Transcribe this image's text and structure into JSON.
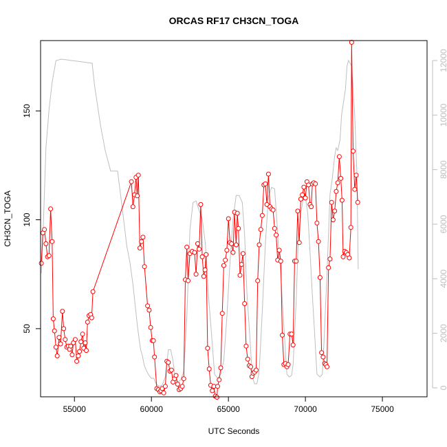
{
  "chart_data": {
    "type": "line",
    "title": "ORCAS RF17 CH3CN_TOGA",
    "xlabel": "UTC Seconds",
    "ylabel": "CH3CN_TOGA",
    "xlim": [
      52800,
      77900
    ],
    "ylim": [
      18.7,
      182.3
    ],
    "y2lim": [
      0,
      12000
    ],
    "x_ticks": [
      55000,
      60000,
      65000,
      70000,
      75000
    ],
    "x_tick_labels": [
      "55000",
      "60000",
      "65000",
      "70000",
      "75000"
    ],
    "y_ticks": [
      50,
      100,
      150
    ],
    "y_tick_labels": [
      "50",
      "100",
      "150"
    ],
    "y2_ticks": [
      0,
      2000,
      4000,
      6000,
      8000,
      10000,
      12000
    ],
    "y2_tick_labels": [
      "0",
      "2000",
      "4000",
      "6000",
      "8000",
      "10000",
      "12000"
    ],
    "series": [
      {
        "role": "CH3CN_TOGA (points with connecting line)",
        "axis": "left",
        "color": "#ff0000",
        "marker": "open-circle",
        "points": [
          [
            52850,
            80
          ],
          [
            52950,
            94
          ],
          [
            53050,
            95.5
          ],
          [
            53150,
            89
          ],
          [
            53250,
            83
          ],
          [
            53350,
            83.5
          ],
          [
            53450,
            105
          ],
          [
            53550,
            90
          ],
          [
            53620,
            54.5
          ],
          [
            53700,
            49
          ],
          [
            53800,
            41.5
          ],
          [
            53880,
            37.5
          ],
          [
            54000,
            46
          ],
          [
            54100,
            43
          ],
          [
            54220,
            58
          ],
          [
            54300,
            50
          ],
          [
            54400,
            45
          ],
          [
            54500,
            41.5
          ],
          [
            54600,
            42
          ],
          [
            54680,
            40.5
          ],
          [
            54750,
            42
          ],
          [
            54850,
            38
          ],
          [
            54930,
            43.5
          ],
          [
            55050,
            45
          ],
          [
            55150,
            35
          ],
          [
            55250,
            37.5
          ],
          [
            55330,
            39.5
          ],
          [
            55420,
            44
          ],
          [
            55530,
            47.5
          ],
          [
            55600,
            41
          ],
          [
            55700,
            43.5
          ],
          [
            55770,
            40
          ],
          [
            55850,
            53
          ],
          [
            55950,
            56
          ],
          [
            56050,
            56.5
          ],
          [
            56120,
            55
          ],
          [
            56200,
            67
          ],
          [
            58700,
            117.5
          ],
          [
            58800,
            106
          ],
          [
            58900,
            111.5
          ],
          [
            59000,
            119.5
          ],
          [
            59080,
            111
          ],
          [
            59150,
            120.5
          ],
          [
            59250,
            87
          ],
          [
            59350,
            90
          ],
          [
            59450,
            92
          ],
          [
            59550,
            78.5
          ],
          [
            59750,
            60.5
          ],
          [
            59850,
            58.5
          ],
          [
            59950,
            50.5
          ],
          [
            60050,
            44.5
          ],
          [
            60130,
            44.5
          ],
          [
            60200,
            37
          ],
          [
            60350,
            22.5
          ],
          [
            60450,
            22
          ],
          [
            60550,
            21
          ],
          [
            60620,
            21.5
          ],
          [
            60700,
            22.5
          ],
          [
            60800,
            20.5
          ],
          [
            60900,
            23.5
          ],
          [
            61000,
            35
          ],
          [
            61100,
            34.5
          ],
          [
            61200,
            30.5
          ],
          [
            61300,
            31
          ],
          [
            61400,
            25.5
          ],
          [
            61500,
            27
          ],
          [
            61600,
            28.5
          ],
          [
            61700,
            24.5
          ],
          [
            61800,
            22
          ],
          [
            61900,
            22.5
          ],
          [
            62000,
            23.5
          ],
          [
            62100,
            27
          ],
          [
            62200,
            72.5
          ],
          [
            62300,
            87.5
          ],
          [
            62380,
            72
          ],
          [
            62500,
            84.5
          ],
          [
            62650,
            85.5
          ],
          [
            62800,
            85
          ],
          [
            62900,
            75
          ],
          [
            63000,
            89
          ],
          [
            63100,
            86.5
          ],
          [
            63200,
            107
          ],
          [
            63300,
            83
          ],
          [
            63400,
            74
          ],
          [
            63480,
            77
          ],
          [
            63550,
            84
          ],
          [
            63650,
            41
          ],
          [
            63750,
            31.5
          ],
          [
            63850,
            24
          ],
          [
            63950,
            21.5
          ],
          [
            64050,
            23.5
          ],
          [
            64150,
            19
          ],
          [
            64250,
            18.5
          ],
          [
            64300,
            23.5
          ],
          [
            64400,
            26.5
          ],
          [
            64500,
            32
          ],
          [
            64600,
            57
          ],
          [
            64700,
            79
          ],
          [
            64800,
            81.5
          ],
          [
            64900,
            86
          ],
          [
            65000,
            100.5
          ],
          [
            65100,
            89.5
          ],
          [
            65200,
            89
          ],
          [
            65300,
            85
          ],
          [
            65400,
            103.5
          ],
          [
            65500,
            88.5
          ],
          [
            65580,
            103
          ],
          [
            65650,
            96
          ],
          [
            65750,
            74.5
          ],
          [
            65850,
            79.5
          ],
          [
            65950,
            84.5
          ],
          [
            66050,
            61.5
          ],
          [
            66150,
            42
          ],
          [
            66250,
            36
          ],
          [
            66350,
            33
          ],
          [
            66450,
            32.5
          ],
          [
            66530,
            28
          ],
          [
            66600,
            29.5
          ],
          [
            66700,
            30
          ],
          [
            66800,
            31
          ],
          [
            66900,
            72
          ],
          [
            67000,
            88.5
          ],
          [
            67100,
            95.5
          ],
          [
            67200,
            102
          ],
          [
            67300,
            116
          ],
          [
            67400,
            116.5
          ],
          [
            67500,
            107
          ],
          [
            67600,
            121
          ],
          [
            67700,
            106
          ],
          [
            67800,
            105
          ],
          [
            67900,
            104.5
          ],
          [
            68000,
            96
          ],
          [
            68100,
            93
          ],
          [
            68200,
            81.5
          ],
          [
            68300,
            86
          ],
          [
            68400,
            81
          ],
          [
            68500,
            47
          ],
          [
            68600,
            33.5
          ],
          [
            68700,
            34
          ],
          [
            68800,
            32.5
          ],
          [
            68880,
            33.5
          ],
          [
            69000,
            47.5
          ],
          [
            69100,
            47.5
          ],
          [
            69200,
            42.5
          ],
          [
            69300,
            81
          ],
          [
            69400,
            81
          ],
          [
            69500,
            104
          ],
          [
            69600,
            89.5
          ],
          [
            69700,
            109.5
          ],
          [
            69800,
            111.5
          ],
          [
            69900,
            115
          ],
          [
            70000,
            110
          ],
          [
            70100,
            117.5
          ],
          [
            70200,
            116
          ],
          [
            70300,
            107
          ],
          [
            70380,
            106
          ],
          [
            70450,
            116.5
          ],
          [
            70550,
            117
          ],
          [
            70650,
            116.5
          ],
          [
            70750,
            98.5
          ],
          [
            70850,
            90
          ],
          [
            70950,
            73.5
          ],
          [
            71050,
            39
          ],
          [
            71150,
            37
          ],
          [
            71250,
            34
          ],
          [
            71330,
            33.5
          ],
          [
            71400,
            32.5
          ],
          [
            71500,
            78
          ],
          [
            71600,
            82
          ],
          [
            71700,
            108
          ],
          [
            71800,
            100
          ],
          [
            71900,
            104
          ],
          [
            72000,
            113
          ],
          [
            72100,
            117
          ],
          [
            72200,
            129
          ],
          [
            72300,
            119
          ],
          [
            72380,
            109
          ],
          [
            72450,
            83
          ],
          [
            72550,
            85.5
          ],
          [
            72650,
            85
          ],
          [
            72750,
            84
          ],
          [
            72850,
            82.5
          ],
          [
            72950,
            96.5
          ],
          [
            73000,
            181.5
          ],
          [
            73100,
            131.5
          ],
          [
            73200,
            114
          ],
          [
            73300,
            120.5
          ],
          [
            73400,
            108
          ]
        ]
      },
      {
        "role": "secondary trace (right axis)",
        "axis": "right",
        "color": "#bebebe",
        "points": [
          [
            52850,
            4200
          ],
          [
            52950,
            5500
          ],
          [
            53150,
            8800
          ],
          [
            53350,
            10200
          ],
          [
            53550,
            11200
          ],
          [
            53800,
            12000
          ],
          [
            54150,
            12050
          ],
          [
            55500,
            11950
          ],
          [
            56150,
            11900
          ],
          [
            56300,
            11100
          ],
          [
            56700,
            9600
          ],
          [
            57000,
            8700
          ],
          [
            57350,
            7950
          ],
          [
            57800,
            7950
          ],
          [
            58100,
            6600
          ],
          [
            58400,
            5200
          ],
          [
            58600,
            4600
          ],
          [
            58800,
            3800
          ],
          [
            59100,
            2200
          ],
          [
            59300,
            1400
          ],
          [
            59400,
            1200
          ],
          [
            59550,
            800
          ],
          [
            59700,
            600
          ],
          [
            59850,
            450
          ],
          [
            60000,
            350
          ],
          [
            60150,
            350
          ],
          [
            60300,
            150
          ],
          [
            60500,
            50
          ],
          [
            60700,
            100
          ],
          [
            60900,
            400
          ],
          [
            61100,
            1400
          ],
          [
            61250,
            1400
          ],
          [
            61400,
            1000
          ],
          [
            61550,
            350
          ],
          [
            61700,
            200
          ],
          [
            61900,
            300
          ],
          [
            62100,
            600
          ],
          [
            62300,
            2600
          ],
          [
            62500,
            5800
          ],
          [
            62700,
            6800
          ],
          [
            62900,
            6850
          ],
          [
            63100,
            6500
          ],
          [
            63300,
            6200
          ],
          [
            63500,
            5300
          ],
          [
            63700,
            3400
          ],
          [
            63900,
            2000
          ],
          [
            64100,
            500
          ],
          [
            64300,
            350
          ],
          [
            64500,
            500
          ],
          [
            64700,
            1000
          ],
          [
            64900,
            2600
          ],
          [
            65100,
            4600
          ],
          [
            65300,
            6200
          ],
          [
            65500,
            7050
          ],
          [
            65700,
            7050
          ],
          [
            65900,
            6800
          ],
          [
            66050,
            5600
          ],
          [
            66200,
            3500
          ],
          [
            66400,
            1800
          ],
          [
            66550,
            400
          ],
          [
            66700,
            150
          ],
          [
            66850,
            150
          ],
          [
            67000,
            600
          ],
          [
            67200,
            2800
          ],
          [
            67400,
            5300
          ],
          [
            67600,
            7000
          ],
          [
            67800,
            7350
          ],
          [
            68000,
            7300
          ],
          [
            68100,
            6500
          ],
          [
            68250,
            5200
          ],
          [
            68400,
            4200
          ],
          [
            68500,
            3200
          ],
          [
            68650,
            1800
          ],
          [
            68800,
            500
          ],
          [
            68950,
            400
          ],
          [
            69100,
            450
          ],
          [
            69200,
            850
          ],
          [
            69400,
            3200
          ],
          [
            69550,
            5600
          ],
          [
            69700,
            6400
          ],
          [
            69850,
            6900
          ],
          [
            70000,
            7000
          ],
          [
            70150,
            6400
          ],
          [
            70300,
            5000
          ],
          [
            70450,
            3400
          ],
          [
            70600,
            2000
          ],
          [
            70750,
            500
          ],
          [
            70950,
            400
          ],
          [
            71100,
            500
          ],
          [
            71200,
            1600
          ],
          [
            71400,
            4200
          ],
          [
            71600,
            7100
          ],
          [
            71750,
            7700
          ],
          [
            71900,
            8500
          ],
          [
            72000,
            8800
          ],
          [
            72100,
            8700
          ],
          [
            72250,
            9100
          ],
          [
            72350,
            10000
          ],
          [
            72600,
            10950
          ],
          [
            72700,
            11800
          ],
          [
            72800,
            12000
          ],
          [
            73000,
            11800
          ],
          [
            73200,
            10000
          ],
          [
            73350,
            7800
          ],
          [
            73430,
            4350
          ]
        ]
      }
    ]
  }
}
